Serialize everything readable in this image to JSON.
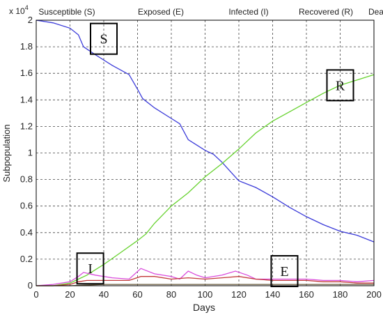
{
  "chart_data": {
    "type": "line",
    "legend_text": [
      "Susceptible (S)",
      "Exposed (E)",
      "Infected (I)",
      "Recovered (R)",
      "Death (D)"
    ],
    "legend_placement": "top",
    "xlabel": "Days",
    "ylabel": "Subpopulation",
    "y_multiplier": "x 10",
    "y_exponent": "4",
    "xlim": [
      0,
      200
    ],
    "ylim": [
      0,
      2
    ],
    "xticks": [
      0,
      20,
      40,
      60,
      80,
      100,
      120,
      140,
      160,
      180,
      200
    ],
    "yticks": [
      0,
      0.2,
      0.4,
      0.6,
      0.8,
      1,
      1.2,
      1.4,
      1.6,
      1.8,
      2
    ],
    "ytick_labels": [
      "0",
      "0.2",
      "0.4",
      "0.6",
      "0.8",
      "1",
      "1.2",
      "1.4",
      "1.6",
      "1.8",
      "2"
    ],
    "grid": true,
    "series": [
      {
        "name": "Susceptible (S)",
        "color": "#3b3bd9",
        "x": [
          0,
          10,
          20,
          25,
          28,
          35,
          45,
          55,
          60,
          63,
          70,
          80,
          85,
          90,
          95,
          100,
          105,
          110,
          115,
          120,
          130,
          140,
          150,
          160,
          170,
          180,
          190,
          200
        ],
        "y": [
          2.0,
          1.98,
          1.94,
          1.89,
          1.8,
          1.74,
          1.66,
          1.59,
          1.48,
          1.41,
          1.34,
          1.26,
          1.22,
          1.1,
          1.06,
          1.02,
          0.99,
          0.93,
          0.86,
          0.79,
          0.74,
          0.67,
          0.59,
          0.52,
          0.46,
          0.41,
          0.38,
          0.33
        ]
      },
      {
        "name": "Recovered (R)",
        "color": "#66d22e",
        "x": [
          0,
          10,
          20,
          25,
          30,
          35,
          40,
          50,
          60,
          65,
          70,
          80,
          90,
          100,
          110,
          120,
          130,
          140,
          150,
          160,
          170,
          180,
          190,
          200
        ],
        "y": [
          0.0,
          0.0,
          0.02,
          0.05,
          0.08,
          0.12,
          0.16,
          0.25,
          0.34,
          0.39,
          0.47,
          0.6,
          0.7,
          0.82,
          0.92,
          1.03,
          1.15,
          1.24,
          1.31,
          1.38,
          1.45,
          1.51,
          1.55,
          1.59
        ]
      },
      {
        "name": "Infected (I)",
        "color": "#d94adc",
        "x": [
          0,
          10,
          20,
          25,
          28,
          35,
          45,
          55,
          62,
          70,
          80,
          85,
          90,
          95,
          100,
          110,
          118,
          125,
          130,
          140,
          150,
          160,
          170,
          180,
          190,
          200
        ],
        "y": [
          0.0,
          0.01,
          0.03,
          0.07,
          0.1,
          0.08,
          0.06,
          0.05,
          0.13,
          0.09,
          0.07,
          0.05,
          0.11,
          0.08,
          0.06,
          0.08,
          0.11,
          0.08,
          0.05,
          0.05,
          0.05,
          0.05,
          0.04,
          0.04,
          0.03,
          0.04
        ]
      },
      {
        "name": "Exposed (E)",
        "color": "#c23a3a",
        "x": [
          0,
          10,
          20,
          25,
          30,
          40,
          50,
          55,
          62,
          70,
          80,
          90,
          100,
          110,
          120,
          130,
          140,
          150,
          160,
          170,
          180,
          190,
          200
        ],
        "y": [
          0.0,
          0.0,
          0.01,
          0.03,
          0.04,
          0.04,
          0.04,
          0.04,
          0.07,
          0.07,
          0.05,
          0.06,
          0.05,
          0.06,
          0.07,
          0.05,
          0.04,
          0.04,
          0.04,
          0.03,
          0.03,
          0.02,
          0.02
        ]
      },
      {
        "name": "Death (D)",
        "color": "#6a5a3a",
        "x": [
          0,
          20,
          40,
          60,
          80,
          100,
          120,
          140,
          160,
          180,
          200
        ],
        "y": [
          0.0,
          0.0,
          0.01,
          0.01,
          0.01,
          0.01,
          0.01,
          0.01,
          0.01,
          0.01,
          0.01
        ]
      }
    ],
    "annotations": [
      {
        "text": "S",
        "x": 40,
        "y": 1.86
      },
      {
        "text": "R",
        "x": 180,
        "y": 1.51
      },
      {
        "text": "I",
        "x": 32,
        "y": 0.13
      },
      {
        "text": "E",
        "x": 147,
        "y": 0.11
      }
    ]
  }
}
